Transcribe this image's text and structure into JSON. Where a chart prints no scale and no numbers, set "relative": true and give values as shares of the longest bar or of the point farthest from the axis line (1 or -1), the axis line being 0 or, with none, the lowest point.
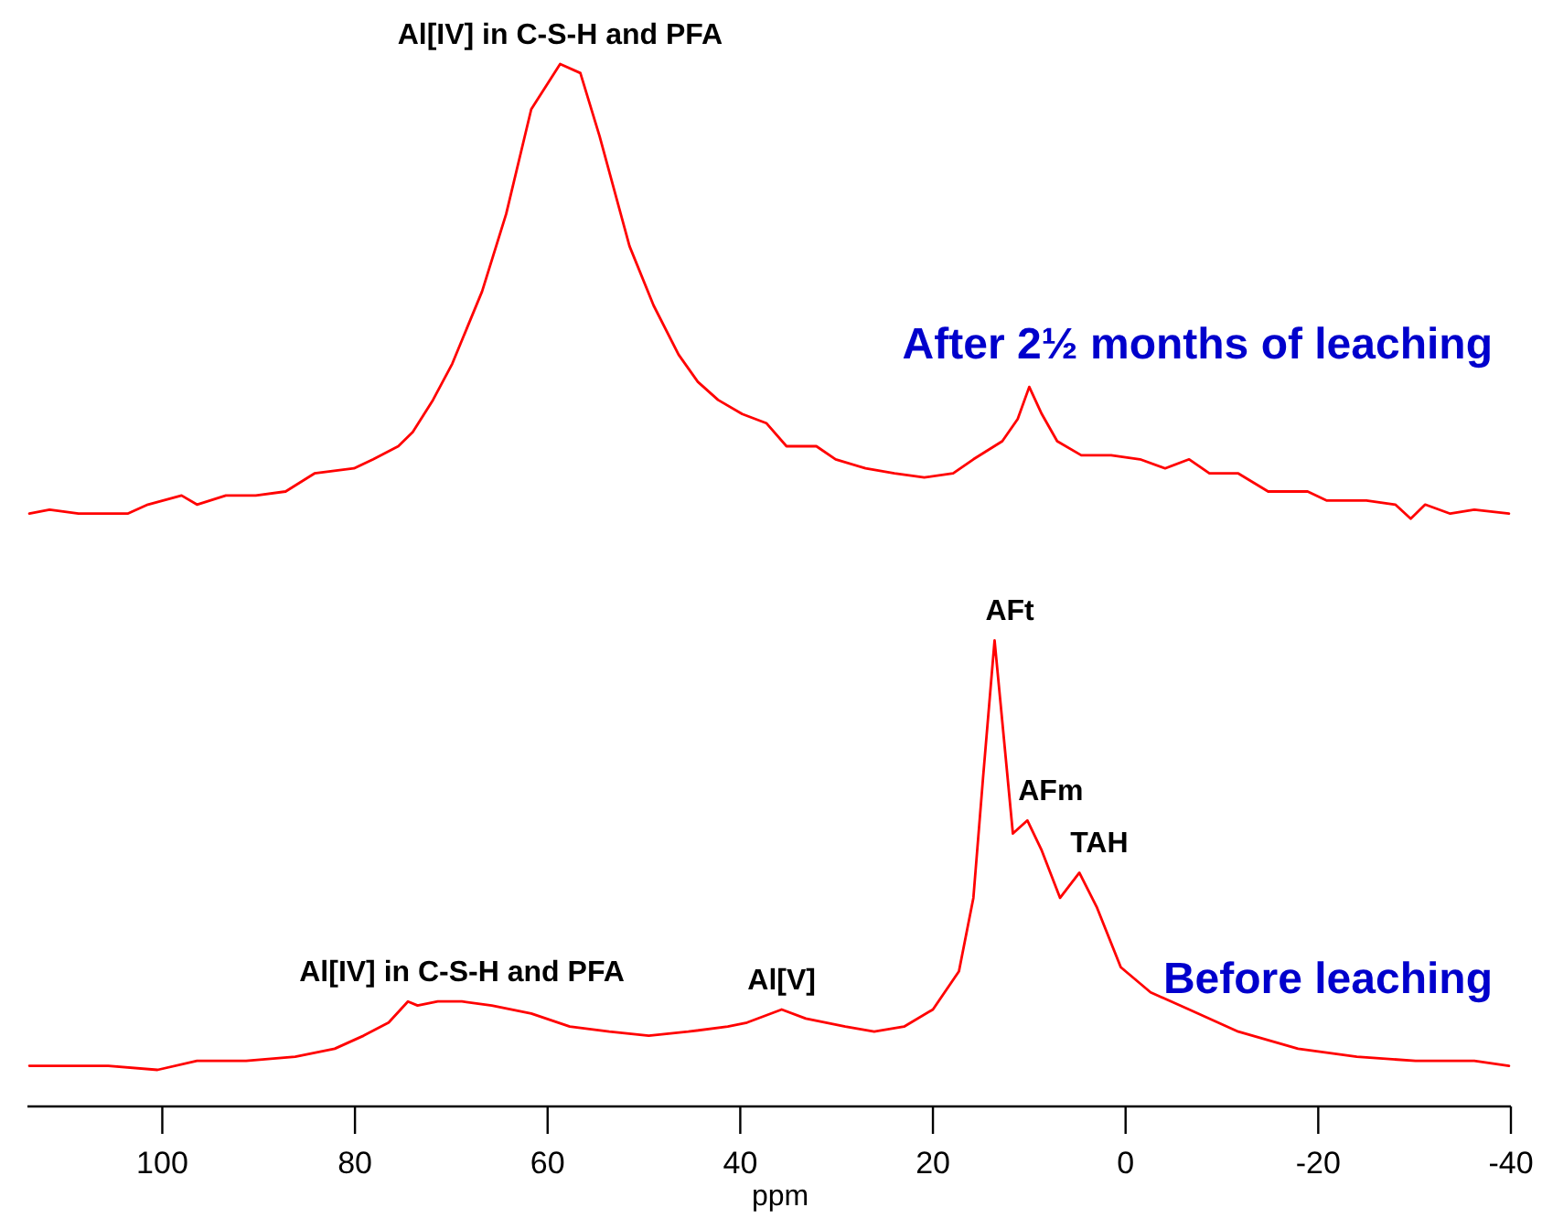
{
  "chart_data": {
    "type": "line",
    "relative": true,
    "xlim": [
      114,
      -40
    ],
    "xlabel": "ppm",
    "xticks": [
      100,
      80,
      60,
      40,
      20,
      0,
      -20,
      -40
    ],
    "series": [
      {
        "name": "After 2½ months of leaching",
        "color": "#ff0000",
        "x": [
          113.8,
          111.7,
          108.7,
          103.6,
          101.5,
          98,
          96.4,
          93.4,
          90.3,
          87.2,
          84.2,
          80.1,
          78.1,
          75.5,
          74,
          71.9,
          69.9,
          66.8,
          64.3,
          61.7,
          58.7,
          56.6,
          54.6,
          51.5,
          49,
          46.4,
          44.4,
          42.3,
          39.8,
          37.3,
          35.2,
          32.1,
          30.1,
          27,
          24,
          20.9,
          17.9,
          15.8,
          12.8,
          11.2,
          10,
          8.7,
          7.1,
          4.6,
          1.5,
          -1.5,
          -4.1,
          -6.6,
          -8.7,
          -11.7,
          -14.8,
          -18.9,
          -20.9,
          -25,
          -28,
          -29.6,
          -31.1,
          -33.7,
          -36.2,
          -39.8
        ],
        "values": [
          0.553,
          0.557,
          0.553,
          0.553,
          0.562,
          0.571,
          0.562,
          0.571,
          0.571,
          0.575,
          0.593,
          0.598,
          0.607,
          0.62,
          0.634,
          0.666,
          0.702,
          0.774,
          0.851,
          0.955,
          1.0,
          0.991,
          0.928,
          0.819,
          0.76,
          0.711,
          0.684,
          0.666,
          0.652,
          0.643,
          0.62,
          0.62,
          0.607,
          0.598,
          0.593,
          0.589,
          0.593,
          0.607,
          0.625,
          0.647,
          0.679,
          0.652,
          0.625,
          0.611,
          0.611,
          0.607,
          0.598,
          0.607,
          0.593,
          0.593,
          0.575,
          0.575,
          0.566,
          0.566,
          0.562,
          0.548,
          0.562,
          0.553,
          0.557,
          0.553
        ]
      },
      {
        "name": "Before leaching",
        "color": "#ff0000",
        "x": [
          113.8,
          109.7,
          105.6,
          100.5,
          96.4,
          91.3,
          86.2,
          82.1,
          79.1,
          76.5,
          74.5,
          73.5,
          71.4,
          68.9,
          65.8,
          61.7,
          57.7,
          53.6,
          49.5,
          45.4,
          41.3,
          39.3,
          35.7,
          33.2,
          29.1,
          26.1,
          23,
          20,
          17.3,
          15.8,
          14.8,
          13.6,
          12.5,
          11.7,
          10.2,
          8.7,
          6.8,
          4.8,
          3,
          0.5,
          -2.6,
          -6.6,
          -11.7,
          -17.9,
          -24,
          -30.1,
          -36.2,
          -39.8
        ],
        "values": [
          0.004,
          0.004,
          0.004,
          0,
          0.009,
          0.009,
          0.013,
          0.021,
          0.034,
          0.047,
          0.068,
          0.064,
          0.068,
          0.068,
          0.064,
          0.056,
          0.043,
          0.038,
          0.034,
          0.038,
          0.043,
          0.047,
          0.06,
          0.051,
          0.043,
          0.038,
          0.043,
          0.06,
          0.098,
          0.171,
          0.29,
          0.427,
          0.316,
          0.235,
          0.248,
          0.218,
          0.171,
          0.196,
          0.162,
          0.102,
          0.077,
          0.06,
          0.038,
          0.021,
          0.013,
          0.009,
          0.009,
          0.004
        ]
      }
    ],
    "annotations": [
      {
        "text": "Al[IV] in C-S-H and PFA",
        "x": 58.7,
        "y": 1.0
      },
      {
        "text": "Al[IV] in C-S-H and PFA",
        "x": 68.9,
        "y": 0.068
      },
      {
        "text": "Al[V]",
        "x": 35.7,
        "y": 0.06
      },
      {
        "text": "AFt",
        "x": 13.6,
        "y": 0.427
      },
      {
        "text": "AFm",
        "x": 10.2,
        "y": 0.248
      },
      {
        "text": "TAH",
        "x": 4.8,
        "y": 0.196
      }
    ]
  }
}
